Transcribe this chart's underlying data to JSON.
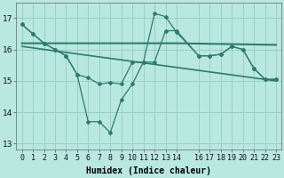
{
  "xlabel": "Humidex (Indice chaleur)",
  "bg_color": "#b8e8e0",
  "line_color": "#2e7b6e",
  "grid_color": "#9acfca",
  "ylim": [
    12.8,
    17.5
  ],
  "xlim": [
    -0.5,
    23.5
  ],
  "yticks": [
    13,
    14,
    15,
    16,
    17
  ],
  "xtick_pos": [
    0,
    1,
    2,
    3,
    4,
    5,
    6,
    7,
    8,
    9,
    10,
    11,
    12,
    13,
    14,
    16,
    17,
    18,
    19,
    20,
    21,
    22,
    23
  ],
  "xtick_labels": [
    "0",
    "1",
    "2",
    "3",
    "4",
    "5",
    "6",
    "7",
    "8",
    "9",
    "10",
    "11",
    "12",
    "13",
    "14",
    "16",
    "17",
    "18",
    "19",
    "20",
    "21",
    "22",
    "23"
  ],
  "series_zigzag_x": [
    0,
    1,
    2,
    3,
    4,
    5,
    6,
    7,
    8,
    9,
    10,
    11,
    12,
    13,
    14,
    16,
    17,
    18,
    19,
    20,
    21,
    22,
    23
  ],
  "series_zigzag_y": [
    16.8,
    16.5,
    16.2,
    16.0,
    15.8,
    15.2,
    13.7,
    13.7,
    13.35,
    14.4,
    14.9,
    15.6,
    17.15,
    17.05,
    16.55,
    15.8,
    15.8,
    15.85,
    16.1,
    16.0,
    15.4,
    15.05,
    15.05
  ],
  "series_smooth_x": [
    0,
    1,
    2,
    3,
    4,
    5,
    6,
    7,
    8,
    9,
    10,
    11,
    12,
    13,
    14,
    16,
    17,
    18,
    19,
    20,
    21,
    22,
    23
  ],
  "series_smooth_y": [
    16.8,
    16.5,
    16.2,
    16.0,
    15.8,
    15.2,
    15.1,
    14.9,
    14.95,
    14.9,
    15.6,
    15.6,
    15.6,
    16.6,
    16.6,
    15.8,
    15.8,
    15.85,
    16.1,
    16.0,
    15.4,
    15.05,
    15.05
  ],
  "trend1_x": [
    0,
    14,
    23
  ],
  "trend1_y": [
    16.2,
    16.2,
    16.15
  ],
  "trend2_x": [
    0,
    23
  ],
  "trend2_y": [
    16.1,
    15.0
  ],
  "lw": 1.0,
  "marker_size": 2.5,
  "label_fontsize": 6,
  "tick_fontsize": 6
}
